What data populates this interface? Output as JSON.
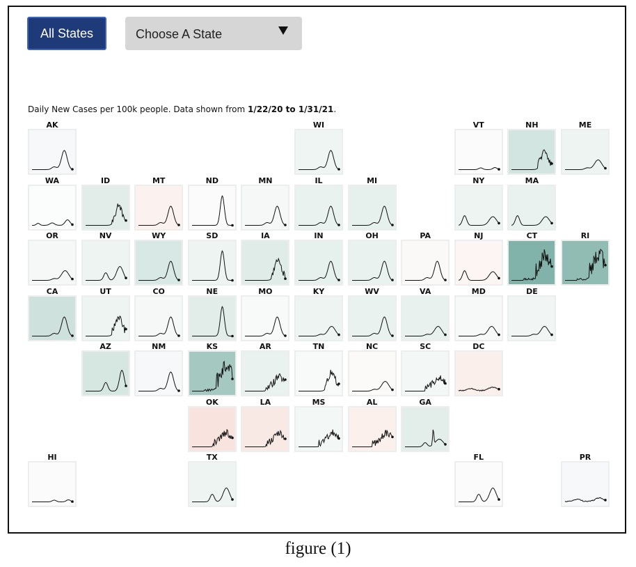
{
  "controls": {
    "all_states_label": "All States",
    "select_value": "Choose A State",
    "select_icon": "triangle-down-icon"
  },
  "description": {
    "text": "Daily New Cases per 100k people. Data shown from ",
    "range": "1/22/20 to 1/31/21",
    "end": "."
  },
  "caption": "figure (1)",
  "colors": {
    "high": "#86b8b0",
    "mid": "#cfe1dd",
    "low": "#eef4f2",
    "neutral": "#f9fafa",
    "warm_low": "#fbefec",
    "warm_mid": "#f7e0d9"
  },
  "chart_data": {
    "type": "small-multiples-line",
    "metric": "Daily New Cases per 100k people",
    "date_range": "1/22/20 to 1/31/21",
    "states": [
      {
        "code": "AK",
        "row": 0,
        "col": 0,
        "fill": "#f6f8f9",
        "shape": "late"
      },
      {
        "code": "WI",
        "row": 0,
        "col": 5,
        "fill": "#eff5f3",
        "shape": "late"
      },
      {
        "code": "VT",
        "row": 0,
        "col": 8,
        "fill": "#fbfbfb",
        "shape": "flat"
      },
      {
        "code": "NH",
        "row": 0,
        "col": 9,
        "fill": "#d3e5e0",
        "shape": "lateSpiky"
      },
      {
        "code": "ME",
        "row": 0,
        "col": 10,
        "fill": "#eef4f2",
        "shape": "lateLow"
      },
      {
        "code": "WA",
        "row": 1,
        "col": 0,
        "fill": "#fbfcfc",
        "shape": "wave3"
      },
      {
        "code": "ID",
        "row": 1,
        "col": 1,
        "fill": "#e2ede9",
        "shape": "lateSpiky"
      },
      {
        "code": "MT",
        "row": 1,
        "col": 2,
        "fill": "#fbf1ee",
        "shape": "late"
      },
      {
        "code": "ND",
        "row": 1,
        "col": 3,
        "fill": "#fbfbfb",
        "shape": "tall"
      },
      {
        "code": "MN",
        "row": 1,
        "col": 4,
        "fill": "#f6f8f8",
        "shape": "late"
      },
      {
        "code": "IL",
        "row": 1,
        "col": 5,
        "fill": "#eaf2ef",
        "shape": "late"
      },
      {
        "code": "MI",
        "row": 1,
        "col": 6,
        "fill": "#e6f0ed",
        "shape": "late"
      },
      {
        "code": "NY",
        "row": 1,
        "col": 8,
        "fill": "#eef4f2",
        "shape": "early"
      },
      {
        "code": "MA",
        "row": 1,
        "col": 9,
        "fill": "#eaf2ef",
        "shape": "early"
      },
      {
        "code": "OR",
        "row": 2,
        "col": 0,
        "fill": "#f6f8f8",
        "shape": "lateLow"
      },
      {
        "code": "NV",
        "row": 2,
        "col": 1,
        "fill": "#eef4f2",
        "shape": "summer"
      },
      {
        "code": "WY",
        "row": 2,
        "col": 2,
        "fill": "#d8e8e4",
        "shape": "late"
      },
      {
        "code": "SD",
        "row": 2,
        "col": 3,
        "fill": "#eef4f2",
        "shape": "tall"
      },
      {
        "code": "IA",
        "row": 2,
        "col": 4,
        "fill": "#e0ece8",
        "shape": "lateSpiky"
      },
      {
        "code": "IN",
        "row": 2,
        "col": 5,
        "fill": "#e6f0ed",
        "shape": "late"
      },
      {
        "code": "OH",
        "row": 2,
        "col": 6,
        "fill": "#eaf2ef",
        "shape": "late"
      },
      {
        "code": "PA",
        "row": 2,
        "col": 7,
        "fill": "#fbf9f8",
        "shape": "late"
      },
      {
        "code": "NJ",
        "row": 2,
        "col": 8,
        "fill": "#fcf5f4",
        "shape": "early"
      },
      {
        "code": "CT",
        "row": 2,
        "col": 9,
        "fill": "#82b3ab",
        "shape": "spiky"
      },
      {
        "code": "RI",
        "row": 2,
        "col": 10,
        "fill": "#90bcb4",
        "shape": "spiky"
      },
      {
        "code": "CA",
        "row": 3,
        "col": 0,
        "fill": "#cfe1dd",
        "shape": "late"
      },
      {
        "code": "UT",
        "row": 3,
        "col": 1,
        "fill": "#eef4f2",
        "shape": "lateSpiky"
      },
      {
        "code": "CO",
        "row": 3,
        "col": 2,
        "fill": "#f6f8f8",
        "shape": "late"
      },
      {
        "code": "NE",
        "row": 3,
        "col": 3,
        "fill": "#e2ede9",
        "shape": "tall"
      },
      {
        "code": "MO",
        "row": 3,
        "col": 4,
        "fill": "#f8f9f9",
        "shape": "late"
      },
      {
        "code": "KY",
        "row": 3,
        "col": 5,
        "fill": "#eef4f2",
        "shape": "lateLow"
      },
      {
        "code": "WV",
        "row": 3,
        "col": 6,
        "fill": "#eaf2ef",
        "shape": "late"
      },
      {
        "code": "VA",
        "row": 3,
        "col": 7,
        "fill": "#e9f1ef",
        "shape": "lateLow"
      },
      {
        "code": "MD",
        "row": 3,
        "col": 8,
        "fill": "#f7f9f8",
        "shape": "lateLow"
      },
      {
        "code": "DE",
        "row": 3,
        "col": 9,
        "fill": "#f1f6f4",
        "shape": "lateLow"
      },
      {
        "code": "AZ",
        "row": 4,
        "col": 1,
        "fill": "#d6e7e2",
        "shape": "summerTall"
      },
      {
        "code": "NM",
        "row": 4,
        "col": 2,
        "fill": "#f6f8f9",
        "shape": "late"
      },
      {
        "code": "KS",
        "row": 4,
        "col": 3,
        "fill": "#a5c8c1",
        "shape": "spiky"
      },
      {
        "code": "AR",
        "row": 4,
        "col": 4,
        "fill": "#eaf2ef",
        "shape": "spikyLow"
      },
      {
        "code": "TN",
        "row": 4,
        "col": 5,
        "fill": "#f8f9f9",
        "shape": "lateSpiky"
      },
      {
        "code": "NC",
        "row": 4,
        "col": 6,
        "fill": "#fcf9f9",
        "shape": "lateLow"
      },
      {
        "code": "SC",
        "row": 4,
        "col": 7,
        "fill": "#f3f7f5",
        "shape": "spikyLow"
      },
      {
        "code": "DC",
        "row": 4,
        "col": 8,
        "fill": "#fbefec",
        "shape": "flatWave"
      },
      {
        "code": "OK",
        "row": 5,
        "col": 3,
        "fill": "#f8e3de",
        "shape": "spikyLow"
      },
      {
        "code": "LA",
        "row": 5,
        "col": 4,
        "fill": "#f9e9e5",
        "shape": "spikyLow"
      },
      {
        "code": "MS",
        "row": 5,
        "col": 5,
        "fill": "#f3f7f5",
        "shape": "spikyLow"
      },
      {
        "code": "AL",
        "row": 5,
        "col": 6,
        "fill": "#fbf0ec",
        "shape": "spikyLow"
      },
      {
        "code": "GA",
        "row": 5,
        "col": 7,
        "fill": "#e3eeea",
        "shape": "oneSpike"
      },
      {
        "code": "HI",
        "row": 6,
        "col": 0,
        "fill": "#fbfbfb",
        "shape": "flat"
      },
      {
        "code": "TX",
        "row": 6,
        "col": 3,
        "fill": "#eef4f2",
        "shape": "summer"
      },
      {
        "code": "FL",
        "row": 6,
        "col": 8,
        "fill": "#fbfbfb",
        "shape": "summer"
      },
      {
        "code": "PR",
        "row": 6,
        "col": 10,
        "fill": "#f7f8fa",
        "shape": "flatWave"
      }
    ]
  }
}
